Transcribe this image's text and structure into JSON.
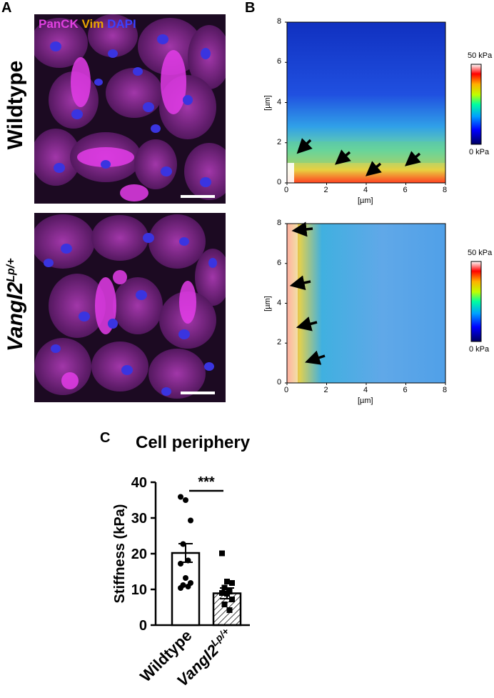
{
  "panels": {
    "a_letter": "A",
    "b_letter": "B",
    "c_letter": "C"
  },
  "panel_a": {
    "channels": [
      {
        "label": "PanCK",
        "color": "#e040e0"
      },
      {
        "label": "Vim",
        "color": "#e8a400"
      },
      {
        "label": "DAPI",
        "color": "#3a40ff"
      }
    ],
    "row_labels": [
      "Wildtype",
      "Vangl2"
    ],
    "row2_superscript": "Lp/+"
  },
  "panel_b": {
    "x_unit": "[µm]",
    "y_unit": "[µm]",
    "ticks": [
      "0",
      "2",
      "4",
      "6",
      "8"
    ],
    "scale_top": "50 kPa",
    "scale_bottom": "0 kPa"
  },
  "chart_data": {
    "type": "bar",
    "title": "Cell periphery",
    "ylabel": "Stiffness (kPa)",
    "ylim": [
      0,
      40
    ],
    "yticks": [
      "0",
      "10",
      "20",
      "30",
      "40"
    ],
    "categories": [
      "Wildtype",
      "Vangl2"
    ],
    "category_superscripts": [
      "",
      "Lp/+"
    ],
    "values": [
      20.2,
      8.9
    ],
    "errors": [
      2.6,
      1.5
    ],
    "points": [
      [
        35.9,
        35.0,
        29.3,
        22.7,
        18.1,
        17.2,
        13.2,
        11.8,
        11.2,
        10.8,
        10.4
      ],
      [
        20.1,
        12.2,
        11.8,
        10.5,
        9.4,
        9.0,
        8.8,
        7.2,
        5.8,
        4.2
      ]
    ],
    "significance": "***"
  }
}
